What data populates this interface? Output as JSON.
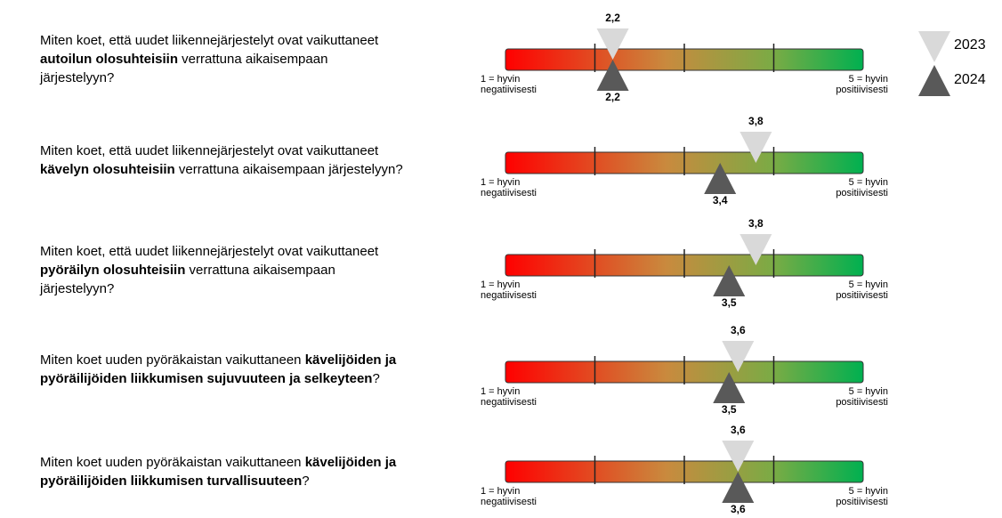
{
  "chart_data": {
    "type": "gauge",
    "categories": [
      [
        [
          {
            "text": "Miten koet, että uudet liikennejärjestelyt ovat vaikuttaneet",
            "bold": false
          }
        ],
        [
          {
            "text": "autoilun olosuhteisiin",
            "bold": true
          },
          {
            "text": " verrattuna aikaisempaan",
            "bold": false
          }
        ],
        [
          {
            "text": "järjestelyyn?",
            "bold": false
          }
        ]
      ],
      [
        [
          {
            "text": "Miten koet, että uudet liikennejärjestelyt ovat vaikuttaneet",
            "bold": false
          }
        ],
        [
          {
            "text": "kävelyn olosuhteisiin",
            "bold": true
          },
          {
            "text": " verrattuna aikaisempaan järjestelyyn?",
            "bold": false
          }
        ]
      ],
      [
        [
          {
            "text": "Miten koet, että uudet liikennejärjestelyt ovat vaikuttaneet",
            "bold": false
          }
        ],
        [
          {
            "text": "pyöräilyn olosuhteisiin",
            "bold": true
          },
          {
            "text": " verrattuna aikaisempaan",
            "bold": false
          }
        ],
        [
          {
            "text": "järjestelyyn?",
            "bold": false
          }
        ]
      ],
      [
        [
          {
            "text": "Miten koet uuden pyöräkaistan vaikuttaneen ",
            "bold": false
          },
          {
            "text": "kävelijöiden ja",
            "bold": true
          }
        ],
        [
          {
            "text": "pyöräilijöiden liikkumisen sujuvuuteen ja selkeyteen",
            "bold": true
          },
          {
            "text": "?",
            "bold": false
          }
        ]
      ],
      [
        [
          {
            "text": "Miten koet uuden pyöräkaistan vaikuttaneen ",
            "bold": false
          },
          {
            "text": "kävelijöiden ja",
            "bold": true
          }
        ],
        [
          {
            "text": "pyöräilijöiden liikkumisen turvallisuuteen",
            "bold": true
          },
          {
            "text": "?",
            "bold": false
          }
        ]
      ]
    ],
    "min_label": [
      "1 = hyvin",
      "negatiivisesti"
    ],
    "max_label": [
      "5 = hyvin",
      "positiivisesti"
    ],
    "xlim": [
      1,
      5
    ],
    "xticks": [
      2,
      3,
      4
    ],
    "series": [
      {
        "name": "2023",
        "color": "#d9d9d9",
        "values": [
          2.2,
          3.8,
          3.8,
          3.6,
          3.6
        ],
        "value_labels": [
          "2,2",
          "3,8",
          "3,8",
          "3,6",
          "3,6"
        ]
      },
      {
        "name": "2024",
        "color": "#595959",
        "values": [
          2.2,
          3.4,
          3.5,
          3.5,
          3.6
        ],
        "value_labels": [
          "2,2",
          "3,4",
          "3,5",
          "3,5",
          "3,6"
        ]
      }
    ]
  }
}
